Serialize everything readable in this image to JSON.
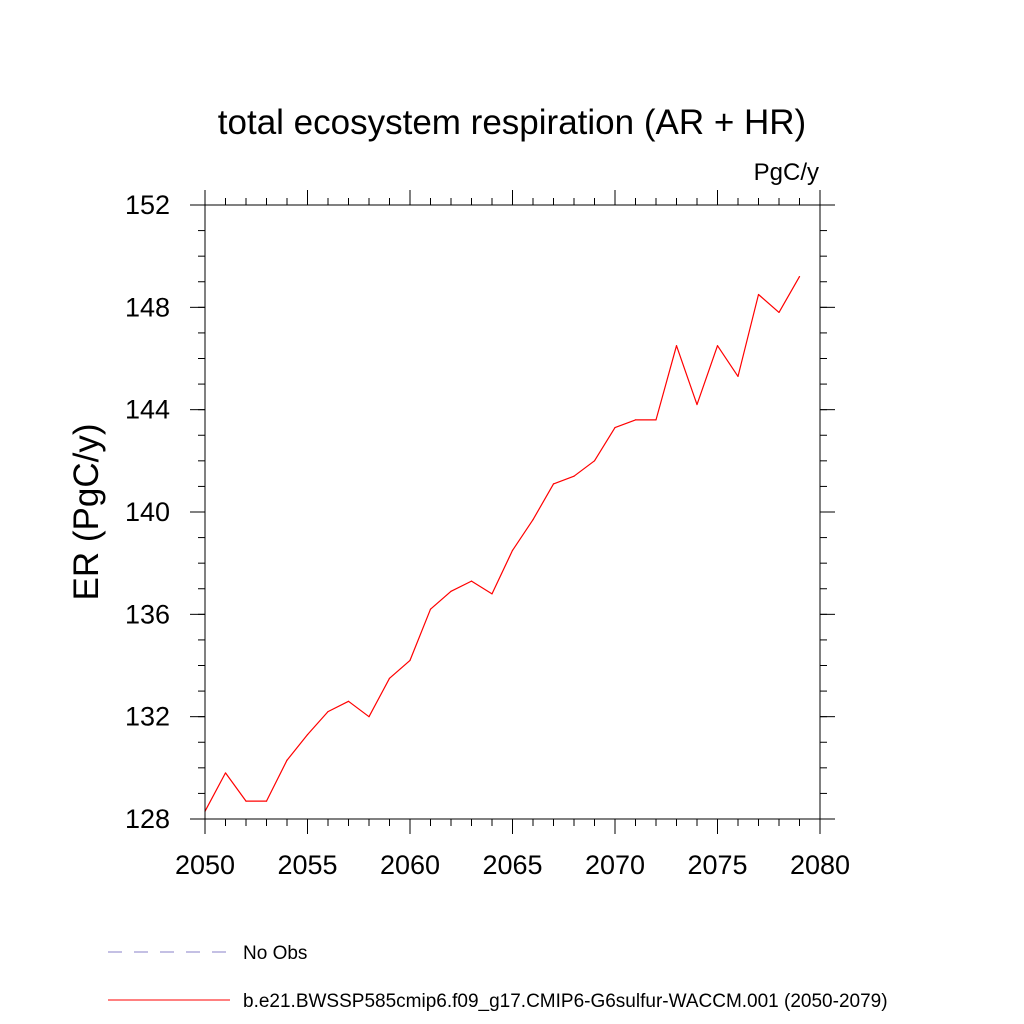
{
  "chart_data": {
    "type": "line",
    "title": "total ecosystem respiration (AR + HR)",
    "units_label": "PgC/y",
    "ylabel": "ER  (PgC/y)",
    "xlabel": "",
    "xlim": [
      2050,
      2080
    ],
    "ylim": [
      128,
      152
    ],
    "x_ticks": [
      2050,
      2055,
      2060,
      2065,
      2070,
      2075,
      2080
    ],
    "y_ticks": [
      128,
      132,
      136,
      140,
      144,
      148,
      152
    ],
    "x_minor_step": 1,
    "y_minor_step": 1,
    "series": [
      {
        "name": "b.e21.BWSSP585cmip6.f09_g17.CMIP6-G6sulfur-WACCM.001 (2050-2079)",
        "color": "#ff0000",
        "x": [
          2050,
          2051,
          2052,
          2053,
          2054,
          2055,
          2056,
          2057,
          2058,
          2059,
          2060,
          2061,
          2062,
          2063,
          2064,
          2065,
          2066,
          2067,
          2068,
          2069,
          2070,
          2071,
          2072,
          2073,
          2074,
          2075,
          2076,
          2077,
          2078,
          2079
        ],
        "values": [
          128.3,
          129.8,
          128.7,
          128.7,
          130.3,
          131.3,
          132.2,
          132.6,
          132.0,
          133.5,
          134.2,
          136.2,
          136.9,
          137.3,
          136.8,
          138.5,
          139.7,
          141.1,
          141.4,
          142.0,
          143.3,
          143.6,
          143.6,
          146.5,
          144.2,
          146.5,
          145.3,
          148.5,
          147.8,
          149.2
        ]
      }
    ],
    "legend": [
      {
        "label": "No Obs",
        "style": "dashed",
        "color": "#8a80c8"
      },
      {
        "label": "b.e21.BWSSP585cmip6.f09_g17.CMIP6-G6sulfur-WACCM.001 (2050-2079)",
        "style": "solid",
        "color": "#ff0000"
      }
    ]
  }
}
